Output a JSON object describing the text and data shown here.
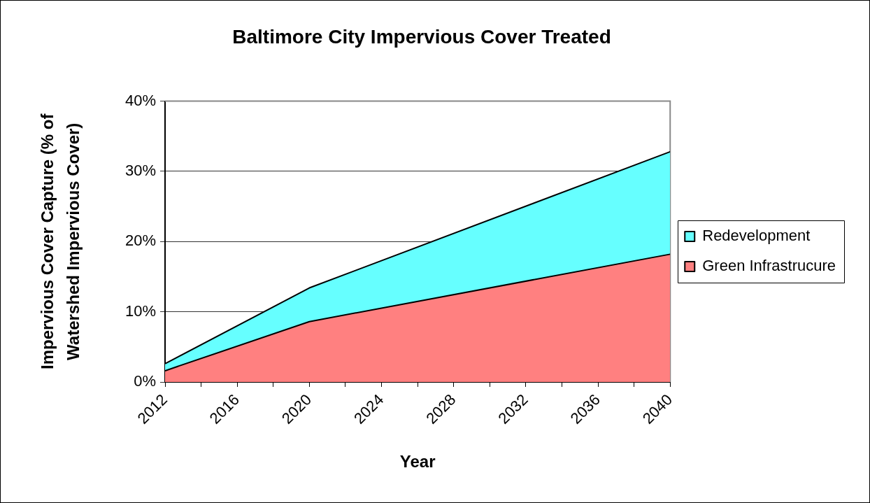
{
  "chart_data": {
    "type": "area",
    "title": "Baltimore City Impervious Cover Treated",
    "xlabel": "Year",
    "ylabel": "Impervious Cover Capture (% of Watershed Impervious Cover)",
    "x": [
      2012,
      2020,
      2040
    ],
    "series": [
      {
        "name": "Green Infrastrucure",
        "color": "#ff8080",
        "values": [
          1.6,
          8.6,
          18.2
        ]
      },
      {
        "name": "Redevelopment",
        "color": "#66ffff",
        "values": [
          1.0,
          4.8,
          14.6
        ]
      }
    ],
    "stacked": true,
    "xlim": [
      2012,
      2040
    ],
    "xticks": [
      2012,
      {
        "value": 2014,
        "label": null
      },
      2016,
      {
        "value": 2018,
        "label": null
      },
      2020,
      {
        "value": 2022,
        "label": null
      },
      2024,
      {
        "value": 2026,
        "label": null
      },
      2028,
      {
        "value": 2030,
        "label": null
      },
      2032,
      {
        "value": 2034,
        "label": null
      },
      2036,
      {
        "value": 2038,
        "label": null
      },
      2040
    ],
    "ylim": [
      0,
      40
    ],
    "yticks": [
      {
        "value": 0,
        "label": "0%"
      },
      {
        "value": 10,
        "label": "10%"
      },
      {
        "value": 20,
        "label": "20%"
      },
      {
        "value": 30,
        "label": "30%"
      },
      {
        "value": 40,
        "label": "40%"
      }
    ],
    "grid": "y",
    "legend": "right",
    "marker": "none"
  }
}
